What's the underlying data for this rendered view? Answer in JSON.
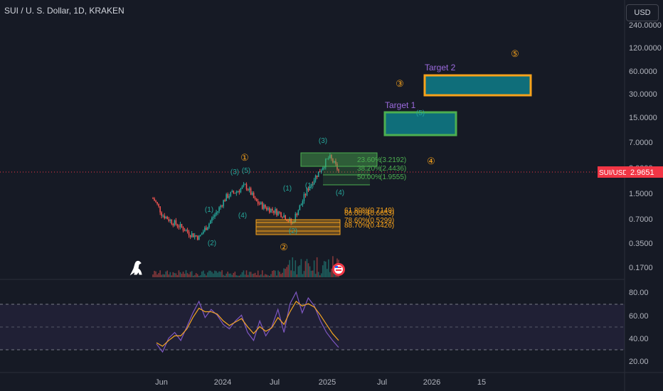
{
  "header": {
    "title": "SUI / U. S. Dollar, 1D, KRAKEN",
    "currency_button": "USD"
  },
  "price_tag": {
    "symbol": "SUI/USD",
    "value": "2.9651"
  },
  "colors": {
    "background": "#161a25",
    "target_green": "#4caf50",
    "target_orange": "#f7a21b",
    "target_fill": "#0f6e7a",
    "wave_teal": "#26a69a",
    "wave_orange": "#f7a21b",
    "fib_green": "#4caf50",
    "fib_orange": "#f7a21b",
    "rsi_line": "#7e57c2",
    "rsi_ma": "#f5a623",
    "price_line": "#f23645"
  },
  "chart_data": [
    {
      "type": "line",
      "subtype": "candlestick-price",
      "scale": "log",
      "yticks": [
        "240.0000",
        "120.0000",
        "60.0000",
        "30.0000",
        "15.0000",
        "7.0000",
        "3.0000",
        "1.5000",
        "0.7000",
        "0.3500",
        "0.1700"
      ],
      "xticks": [
        "Jun",
        "2024",
        "Jul",
        "2025",
        "Jul",
        "2026",
        "15"
      ],
      "last_price": 2.9651,
      "series": [
        {
          "name": "SUI/USD",
          "x": [
            "2023-05",
            "2023-06",
            "2023-07",
            "2023-08",
            "2023-09",
            "2023-10",
            "2023-11",
            "2023-12",
            "2024-01",
            "2024-02",
            "2024-03",
            "2024-04",
            "2024-05",
            "2024-06",
            "2024-07",
            "2024-08",
            "2024-09",
            "2024-10",
            "2024-11",
            "2024-12",
            "2025-01"
          ],
          "values": [
            1.3,
            0.8,
            0.65,
            0.55,
            0.45,
            0.4,
            0.6,
            0.9,
            1.4,
            1.6,
            1.9,
            1.2,
            1.0,
            0.9,
            0.8,
            0.6,
            1.1,
            2.0,
            3.0,
            4.5,
            2.9651
          ]
        }
      ],
      "fib_levels_upper": [
        {
          "label": "23.60%",
          "value": "(3.2192)"
        },
        {
          "label": "38.20%",
          "value": "(2.4436)"
        },
        {
          "label": "50.00%",
          "value": "(1.9555)"
        }
      ],
      "fib_levels_lower": [
        {
          "label": "61.80%",
          "value": "(0.7149)"
        },
        {
          "label": "66.00%",
          "value": "(0.6653)"
        },
        {
          "label": "78.60%",
          "value": "(0.5299)"
        },
        {
          "label": "88.70%",
          "value": "(0.4426)"
        }
      ],
      "targets": [
        {
          "label": "Target 1",
          "low": 9.5,
          "high": 16
        },
        {
          "label": "Target 2",
          "low": 30,
          "high": 50
        }
      ],
      "wave_labels_major": [
        "①",
        "②",
        "③",
        "④",
        "⑤"
      ],
      "wave_labels_minor": [
        "(1)",
        "(2)",
        "(3)",
        "(4)",
        "(5)"
      ]
    },
    {
      "type": "line",
      "subtype": "rsi",
      "yticks": [
        "80.00",
        "60.00",
        "40.00",
        "20.00"
      ],
      "ylim": [
        15,
        88
      ],
      "band": [
        30,
        70
      ],
      "series": [
        {
          "values": [
            35,
            28,
            40,
            45,
            38,
            50,
            62,
            72,
            58,
            65,
            60,
            52,
            48,
            55,
            60,
            45,
            38,
            55,
            42,
            50,
            65,
            45,
            70,
            80,
            62,
            75,
            68,
            55,
            45,
            38,
            32
          ]
        },
        {
          "values": [
            36,
            33,
            38,
            42,
            42,
            48,
            58,
            66,
            63,
            63,
            61,
            55,
            51,
            54,
            57,
            50,
            44,
            50,
            46,
            49,
            58,
            52,
            63,
            72,
            68,
            70,
            67,
            60,
            52,
            44,
            38
          ]
        }
      ]
    }
  ]
}
